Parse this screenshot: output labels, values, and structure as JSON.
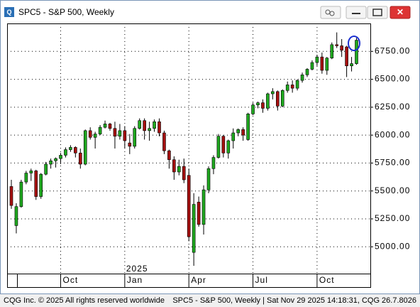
{
  "window": {
    "title": "SPC5 - S&P 500, Weekly"
  },
  "status_bar": {
    "left": "CQG Inc. © 2025 All rights reserved worldwide",
    "right": "SPC5 - S&P 500, Weekly | Sat Nov 29 2025 14:18:31, CQG 26.7.8026"
  },
  "chart_data": {
    "type": "candlestick",
    "categories": [
      null,
      null,
      null,
      null,
      null,
      null,
      null,
      null,
      null,
      null,
      "Oct",
      null,
      null,
      null,
      null,
      null,
      null,
      null,
      null,
      null,
      null,
      null,
      null,
      "Jan",
      null,
      null,
      null,
      null,
      null,
      null,
      null,
      null,
      null,
      null,
      null,
      null,
      "Apr",
      null,
      null,
      null,
      null,
      null,
      null,
      null,
      null,
      null,
      null,
      null,
      null,
      "Jul",
      null,
      null,
      null,
      null,
      null,
      null,
      null,
      null,
      null,
      null,
      null,
      null,
      "Oct",
      null,
      null,
      null,
      null,
      null,
      null,
      null,
      null
    ],
    "year_label": "2025",
    "open": [
      5540,
      5190,
      5360,
      5580,
      5660,
      5680,
      5450,
      5650,
      5740,
      5770,
      5790,
      5820,
      5870,
      5890,
      5840,
      5740,
      6040,
      5980,
      6010,
      6070,
      6100,
      6060,
      5990,
      6040,
      5930,
      5900,
      6060,
      6130,
      6040,
      6060,
      6120,
      6020,
      5860,
      5780,
      5670,
      5720,
      5640,
      4950,
      5400,
      5200,
      5510,
      5700,
      5800,
      5990,
      5840,
      5950,
      6020,
      6050,
      5960,
      6190,
      6270,
      6290,
      6240,
      6370,
      6390,
      6260,
      6400,
      6450,
      6420,
      6490,
      6540,
      6590,
      6650,
      6700,
      6580,
      6690,
      6810,
      6800,
      6790,
      6620,
      6640
    ],
    "high": [
      5600,
      5390,
      5600,
      5680,
      5700,
      5690,
      5660,
      5760,
      5790,
      5800,
      5840,
      5890,
      5910,
      5900,
      5880,
      6050,
      6070,
      6030,
      6090,
      6130,
      6110,
      6120,
      6100,
      6080,
      6010,
      6080,
      6150,
      6150,
      6120,
      6140,
      6150,
      6040,
      5870,
      5810,
      5780,
      5790,
      5700,
      5480,
      5450,
      5550,
      5720,
      5820,
      6010,
      6000,
      5960,
      6060,
      6060,
      6070,
      6200,
      6290,
      6300,
      6320,
      6380,
      6420,
      6400,
      6410,
      6480,
      6490,
      6500,
      6560,
      6600,
      6670,
      6720,
      6740,
      6700,
      6830,
      6920,
      6860,
      6800,
      6700,
      6870
    ],
    "low": [
      5340,
      5120,
      5350,
      5560,
      5590,
      5420,
      5430,
      5640,
      5700,
      5710,
      5740,
      5800,
      5850,
      5800,
      5700,
      5730,
      5960,
      5880,
      6000,
      6060,
      6040,
      5880,
      5960,
      5880,
      5830,
      5880,
      6050,
      5960,
      5950,
      6030,
      5990,
      5830,
      5700,
      5600,
      5640,
      5570,
      5050,
      4830,
      5180,
      5110,
      5480,
      5650,
      5790,
      5800,
      5790,
      5880,
      5990,
      5950,
      5950,
      6180,
      6240,
      6200,
      6220,
      6320,
      6220,
      6250,
      6380,
      6380,
      6400,
      6470,
      6520,
      6580,
      6620,
      6550,
      6540,
      6680,
      6780,
      6700,
      6520,
      6570,
      6630
    ],
    "close": [
      5370,
      5360,
      5580,
      5660,
      5680,
      5450,
      5650,
      5740,
      5770,
      5790,
      5820,
      5870,
      5890,
      5840,
      5740,
      6040,
      5980,
      6010,
      6070,
      6100,
      6060,
      5990,
      6040,
      5950,
      5900,
      6060,
      6130,
      6040,
      6060,
      6120,
      6020,
      5860,
      5780,
      5670,
      5720,
      5600,
      5090,
      5380,
      5200,
      5510,
      5700,
      5800,
      5990,
      5840,
      5950,
      6020,
      6050,
      6000,
      6190,
      6270,
      6290,
      6240,
      6370,
      6390,
      6260,
      6400,
      6450,
      6420,
      6490,
      6540,
      6590,
      6650,
      6700,
      6580,
      6690,
      6810,
      6800,
      6760,
      6620,
      6640,
      6850
    ],
    "up_color": "#1fa81f",
    "down_color": "#a51010",
    "ylim": [
      4760,
      7000
    ],
    "yticks": [
      {
        "value": 5000,
        "label": "5000.00"
      },
      {
        "value": 5250,
        "label": "5250.00"
      },
      {
        "value": 5500,
        "label": "5500.00"
      },
      {
        "value": 5750,
        "label": "5750.00"
      },
      {
        "value": 6000,
        "label": "6000.00"
      },
      {
        "value": 6250,
        "label": "6250.00"
      },
      {
        "value": 6500,
        "label": "6500.00"
      },
      {
        "value": 6750,
        "label": "6750.00"
      }
    ],
    "grid": true
  }
}
